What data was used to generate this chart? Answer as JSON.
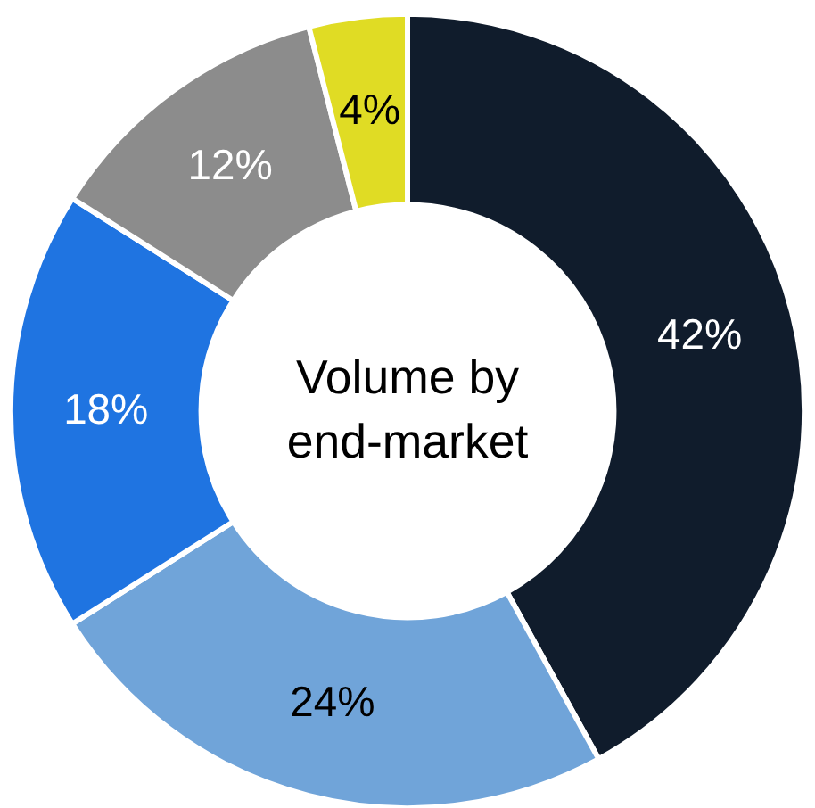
{
  "chart_data": {
    "type": "donut",
    "title": "Volume by end-market",
    "categories": [
      null,
      null,
      null,
      null,
      null
    ],
    "values": [
      42,
      24,
      18,
      12,
      4
    ],
    "value_labels": [
      "42%",
      "24%",
      "18%",
      "12%",
      "4%"
    ],
    "colors": [
      "#101c2c",
      "#70a4d9",
      "#1f74e1",
      "#8c8c8c",
      "#e0dc24"
    ]
  }
}
